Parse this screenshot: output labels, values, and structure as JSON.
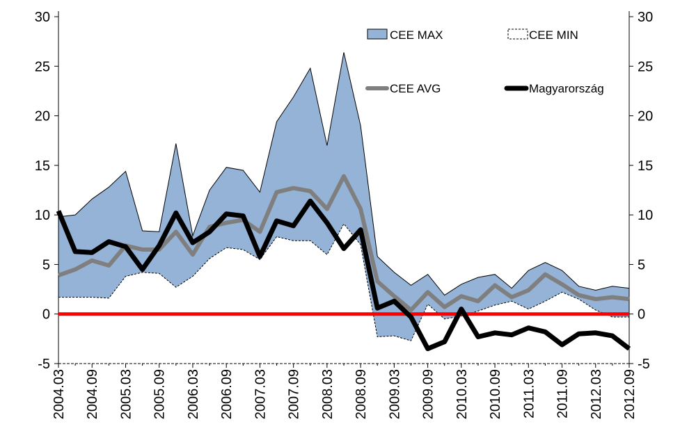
{
  "chart_data": {
    "type": "area",
    "x": [
      "2004.03",
      "2004.06",
      "2004.09",
      "2004.12",
      "2005.03",
      "2005.06",
      "2005.09",
      "2005.12",
      "2006.03",
      "2006.06",
      "2006.09",
      "2006.12",
      "2007.03",
      "2007.06",
      "2007.09",
      "2007.12",
      "2008.03",
      "2008.06",
      "2008.09",
      "2008.12",
      "2009.03",
      "2009.06",
      "2009.09",
      "2009.12",
      "2010.03",
      "2010.06",
      "2010.09",
      "2010.12",
      "2011.03",
      "2011.06",
      "2011.09",
      "2011.12",
      "2012.03",
      "2012.06",
      "2012.09"
    ],
    "x_tick_labels": [
      "2004.03",
      "2004.09",
      "2005.03",
      "2005.09",
      "2006.03",
      "2006.09",
      "2007.03",
      "2007.09",
      "2008.03",
      "2008.09",
      "2009.03",
      "2009.09",
      "2010.03",
      "2010.09",
      "2011.03",
      "2011.09",
      "2012.03",
      "2012.09"
    ],
    "ylim": [
      -5,
      30
    ],
    "y_ticks": [
      -5,
      0,
      5,
      10,
      15,
      20,
      25,
      30
    ],
    "secondary_y_axis": true,
    "grid": false,
    "legend_position": "top-right",
    "series": [
      {
        "name": "CEE MAX",
        "kind": "area-band-upper",
        "color": "#95B3D7",
        "values": [
          9.8,
          10.0,
          11.6,
          12.8,
          14.4,
          8.4,
          8.3,
          17.2,
          7.9,
          12.5,
          14.8,
          14.5,
          12.3,
          19.4,
          21.9,
          24.8,
          17.0,
          26.4,
          19.0,
          5.8,
          4.2,
          2.9,
          4.0,
          1.9,
          3.0,
          3.7,
          4.0,
          2.6,
          4.4,
          5.2,
          4.4,
          2.8,
          2.4,
          2.8,
          2.6
        ]
      },
      {
        "name": "CEE MIN",
        "kind": "area-band-lower",
        "color": "#ffffff",
        "values": [
          1.7,
          1.7,
          1.7,
          1.6,
          3.8,
          4.2,
          4.1,
          2.7,
          3.8,
          5.6,
          6.7,
          6.5,
          5.5,
          7.8,
          7.4,
          7.4,
          6.0,
          9.1,
          7.0,
          -2.3,
          -2.2,
          -2.7,
          1.0,
          -0.5,
          -0.2,
          0.3,
          0.9,
          1.3,
          0.5,
          1.3,
          2.2,
          1.5,
          0.4,
          -0.3,
          -0.3
        ]
      },
      {
        "name": "CEE AVG",
        "kind": "line",
        "color": "#7F7F7F",
        "values": [
          3.9,
          4.5,
          5.4,
          4.9,
          6.9,
          6.5,
          6.5,
          8.3,
          6.0,
          8.8,
          9.2,
          9.5,
          8.3,
          12.3,
          12.7,
          12.4,
          10.6,
          13.9,
          10.6,
          3.3,
          1.8,
          0.4,
          2.2,
          0.7,
          1.8,
          1.3,
          2.9,
          1.7,
          2.4,
          4.0,
          3.0,
          1.9,
          1.5,
          1.7,
          1.5
        ]
      },
      {
        "name": "Magyarország",
        "kind": "line",
        "color": "#000000",
        "values": [
          10.4,
          6.3,
          6.2,
          7.3,
          6.8,
          4.5,
          6.9,
          10.2,
          7.2,
          8.3,
          10.1,
          9.9,
          5.8,
          9.4,
          8.9,
          11.4,
          9.2,
          6.6,
          8.5,
          0.6,
          1.3,
          -0.3,
          -3.5,
          -2.8,
          0.5,
          -2.3,
          -1.9,
          -2.1,
          -1.4,
          -1.8,
          -3.1,
          -2.0,
          -1.9,
          -2.2,
          -3.5
        ]
      }
    ],
    "reference_line": {
      "value": 0,
      "color": "#FF0000"
    }
  }
}
